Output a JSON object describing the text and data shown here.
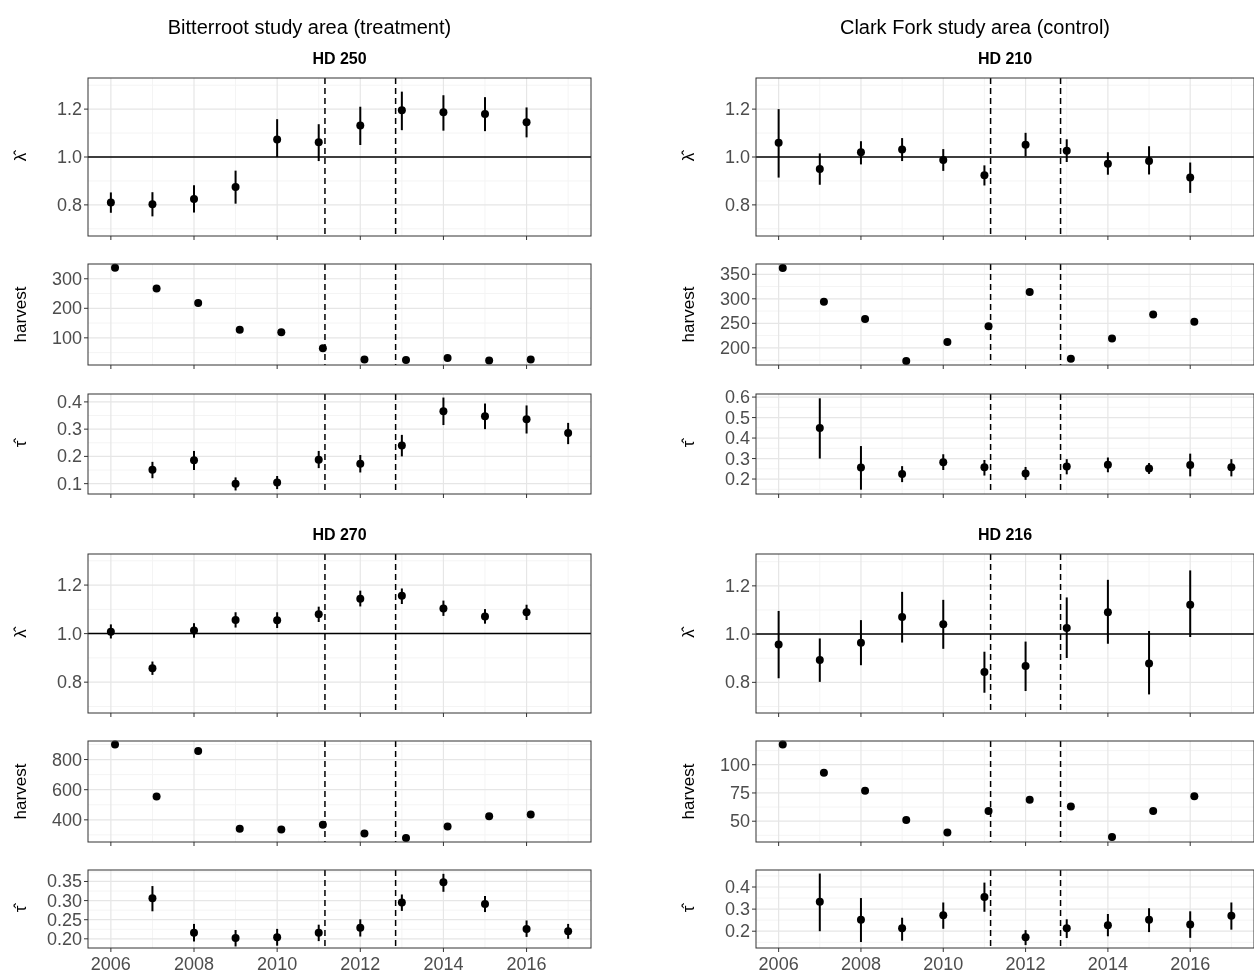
{
  "chart_data": [
    {
      "type": "scatter",
      "title": "Bitterroot study area (treatment)",
      "subtitle": "HD 250",
      "ylabel": "λ̂",
      "color": "#000000",
      "marker": "circle",
      "grid": true,
      "tick_labels": "y",
      "x": [
        2006,
        2007,
        2008,
        2009,
        2010,
        2011,
        2012,
        2013,
        2014,
        2015,
        2016
      ],
      "values": [
        0.81,
        0.803,
        0.825,
        0.875,
        1.073,
        1.062,
        1.132,
        1.195,
        1.187,
        1.18,
        1.145
      ],
      "errors": [
        [
          0.767,
          0.852
        ],
        [
          0.752,
          0.853
        ],
        [
          0.768,
          0.882
        ],
        [
          0.805,
          0.943
        ],
        [
          1.0,
          1.158
        ],
        [
          0.983,
          1.137
        ],
        [
          1.05,
          1.21
        ],
        [
          1.112,
          1.273
        ],
        [
          1.11,
          1.258
        ],
        [
          1.108,
          1.25
        ],
        [
          1.082,
          1.207
        ]
      ],
      "xlim": [
        2005.45,
        2017.55
      ],
      "xticks": [
        2006,
        2008,
        2010,
        2012,
        2014,
        2016
      ],
      "ylim": [
        0.67,
        1.33
      ],
      "yticks": [
        0.8,
        {
          "value": 1,
          "label": "1.0"
        },
        1.2
      ],
      "ref_lines": [
        {
          "axis": "y",
          "value": 1,
          "line_style": "solid"
        },
        {
          "axis": "x",
          "value": 2011.15,
          "line_style": "dashed"
        },
        {
          "axis": "x",
          "value": 2012.85,
          "line_style": "dashed"
        }
      ]
    },
    {
      "type": "scatter",
      "title": "Clark Fork study area (control)",
      "subtitle": "HD 210",
      "ylabel": "λ̂",
      "color": "#000000",
      "marker": "circle",
      "grid": true,
      "tick_labels": "y",
      "x": [
        2006,
        2007,
        2008,
        2009,
        2010,
        2011,
        2012,
        2013,
        2014,
        2015,
        2016
      ],
      "values": [
        1.06,
        0.95,
        1.02,
        1.031,
        0.987,
        0.924,
        1.051,
        1.026,
        0.972,
        0.983,
        0.914
      ],
      "errors": [
        [
          0.914,
          1.2
        ],
        [
          0.884,
          1.015
        ],
        [
          0.969,
          1.066
        ],
        [
          0.983,
          1.079
        ],
        [
          0.942,
          1.033
        ],
        [
          0.881,
          0.965
        ],
        [
          1.003,
          1.101
        ],
        [
          0.979,
          1.074
        ],
        [
          0.926,
          1.02
        ],
        [
          0.927,
          1.045
        ],
        [
          0.85,
          0.977
        ]
      ],
      "xlim": [
        2005.45,
        2017.55
      ],
      "xticks": [
        2006,
        2008,
        2010,
        2012,
        2014,
        2016
      ],
      "ylim": [
        0.67,
        1.33
      ],
      "yticks": [
        0.8,
        {
          "value": 1,
          "label": "1.0"
        },
        1.2
      ],
      "ref_lines": [
        {
          "axis": "y",
          "value": 1,
          "line_style": "solid"
        },
        {
          "axis": "x",
          "value": 2011.15,
          "line_style": "dashed"
        },
        {
          "axis": "x",
          "value": 2012.85,
          "line_style": "dashed"
        }
      ]
    },
    {
      "type": "scatter",
      "ylabel": "harvest",
      "color": "#000000",
      "marker": "circle",
      "grid": true,
      "tick_labels": "y",
      "x": [
        2006.1,
        2007.1,
        2008.1,
        2009.1,
        2010.1,
        2011.1,
        2012.1,
        2013.1,
        2014.1,
        2015.1,
        2016.1
      ],
      "values": [
        337,
        267,
        218,
        127,
        119,
        65,
        27,
        25,
        32,
        23,
        27
      ],
      "xlim": [
        2005.45,
        2017.55
      ],
      "xticks": [
        2006,
        2008,
        2010,
        2012,
        2014,
        2016
      ],
      "ylim": [
        8,
        350
      ],
      "yticks": [
        100,
        200,
        300
      ],
      "ref_lines": [
        {
          "axis": "x",
          "value": 2011.15,
          "line_style": "dashed"
        },
        {
          "axis": "x",
          "value": 2012.85,
          "line_style": "dashed"
        }
      ]
    },
    {
      "type": "scatter",
      "ylabel": "harvest",
      "color": "#000000",
      "marker": "circle",
      "grid": true,
      "tick_labels": "y",
      "x": [
        2006.1,
        2007.1,
        2008.1,
        2009.1,
        2010.1,
        2011.1,
        2012.1,
        2013.1,
        2014.1,
        2015.1,
        2016.1
      ],
      "values": [
        363,
        294,
        259,
        173,
        212,
        244,
        314,
        178,
        219,
        268,
        253
      ],
      "xlim": [
        2005.45,
        2017.55
      ],
      "xticks": [
        2006,
        2008,
        2010,
        2012,
        2014,
        2016
      ],
      "ylim": [
        165,
        371
      ],
      "yticks": [
        200,
        250,
        300,
        350
      ],
      "ref_lines": [
        {
          "axis": "x",
          "value": 2011.15,
          "line_style": "dashed"
        },
        {
          "axis": "x",
          "value": 2012.85,
          "line_style": "dashed"
        }
      ]
    },
    {
      "type": "scatter",
      "ylabel": "τ̂",
      "color": "#000000",
      "marker": "circle",
      "grid": true,
      "tick_labels": "y",
      "x": [
        2007,
        2008,
        2009,
        2010,
        2011,
        2012,
        2013,
        2014,
        2015,
        2016,
        2017
      ],
      "values": [
        0.151,
        0.186,
        0.1,
        0.104,
        0.188,
        0.173,
        0.24,
        0.366,
        0.347,
        0.336,
        0.286
      ],
      "errors": [
        [
          0.12,
          0.18
        ],
        [
          0.15,
          0.22
        ],
        [
          0.075,
          0.123
        ],
        [
          0.08,
          0.128
        ],
        [
          0.157,
          0.22
        ],
        [
          0.141,
          0.205
        ],
        [
          0.2,
          0.279
        ],
        [
          0.315,
          0.416
        ],
        [
          0.3,
          0.394
        ],
        [
          0.284,
          0.387
        ],
        [
          0.245,
          0.323
        ]
      ],
      "xlim": [
        2005.45,
        2017.55
      ],
      "xticks": [
        2006,
        2008,
        2010,
        2012,
        2014,
        2016
      ],
      "ylim": [
        0.062,
        0.429
      ],
      "yticks": [
        0.1,
        0.2,
        0.3,
        0.4
      ],
      "ref_lines": [
        {
          "axis": "x",
          "value": 2011.15,
          "line_style": "dashed"
        },
        {
          "axis": "x",
          "value": 2012.85,
          "line_style": "dashed"
        }
      ]
    },
    {
      "type": "scatter",
      "ylabel": "τ̂",
      "color": "#000000",
      "marker": "circle",
      "grid": true,
      "tick_labels": "y",
      "x": [
        2007,
        2008,
        2009,
        2010,
        2011,
        2012,
        2013,
        2014,
        2015,
        2016,
        2017
      ],
      "values": [
        0.449,
        0.256,
        0.225,
        0.282,
        0.257,
        0.227,
        0.261,
        0.27,
        0.251,
        0.268,
        0.257
      ],
      "errors": [
        [
          0.3,
          0.594
        ],
        [
          0.148,
          0.361
        ],
        [
          0.185,
          0.263
        ],
        [
          0.244,
          0.321
        ],
        [
          0.217,
          0.293
        ],
        [
          0.196,
          0.259
        ],
        [
          0.223,
          0.297
        ],
        [
          0.233,
          0.305
        ],
        [
          0.225,
          0.278
        ],
        [
          0.213,
          0.324
        ],
        [
          0.213,
          0.297
        ]
      ],
      "xlim": [
        2005.45,
        2017.55
      ],
      "xticks": [
        2006,
        2008,
        2010,
        2012,
        2014,
        2016
      ],
      "ylim": [
        0.127,
        0.615
      ],
      "yticks": [
        0.2,
        0.3,
        0.4,
        0.5,
        0.6
      ],
      "ref_lines": [
        {
          "axis": "x",
          "value": 2011.15,
          "line_style": "dashed"
        },
        {
          "axis": "x",
          "value": 2012.85,
          "line_style": "dashed"
        }
      ]
    },
    {
      "type": "scatter",
      "title": "HD 270",
      "ylabel": "λ̂",
      "color": "#000000",
      "marker": "circle",
      "grid": true,
      "tick_labels": "y",
      "x": [
        2006,
        2007,
        2008,
        2009,
        2010,
        2011,
        2012,
        2013,
        2014,
        2015,
        2016
      ],
      "values": [
        1.008,
        0.857,
        1.013,
        1.056,
        1.055,
        1.08,
        1.144,
        1.156,
        1.104,
        1.071,
        1.088
      ],
      "errors": [
        [
          0.98,
          1.038
        ],
        [
          0.83,
          0.885
        ],
        [
          0.983,
          1.043
        ],
        [
          1.025,
          1.088
        ],
        [
          1.023,
          1.088
        ],
        [
          1.048,
          1.111
        ],
        [
          1.112,
          1.177
        ],
        [
          1.122,
          1.186
        ],
        [
          1.073,
          1.136
        ],
        [
          1.041,
          1.101
        ],
        [
          1.056,
          1.119
        ]
      ],
      "xlim": [
        2005.45,
        2017.55
      ],
      "xticks": [
        2006,
        2008,
        2010,
        2012,
        2014,
        2016
      ],
      "ylim": [
        0.673,
        1.328
      ],
      "yticks": [
        0.8,
        {
          "value": 1,
          "label": "1.0"
        },
        1.2
      ],
      "ref_lines": [
        {
          "axis": "y",
          "value": 1,
          "line_style": "solid"
        },
        {
          "axis": "x",
          "value": 2011.15,
          "line_style": "dashed"
        },
        {
          "axis": "x",
          "value": 2012.85,
          "line_style": "dashed"
        }
      ]
    },
    {
      "type": "scatter",
      "title": "HD 216",
      "ylabel": "λ̂",
      "color": "#000000",
      "marker": "circle",
      "grid": true,
      "tick_labels": "y",
      "x": [
        2006,
        2007,
        2008,
        2009,
        2010,
        2011,
        2012,
        2013,
        2014,
        2015,
        2016
      ],
      "values": [
        0.957,
        0.893,
        0.964,
        1.071,
        1.041,
        0.843,
        0.868,
        1.025,
        1.091,
        0.878,
        1.122
      ],
      "errors": [
        [
          0.817,
          1.096
        ],
        [
          0.802,
          0.982
        ],
        [
          0.871,
          1.058
        ],
        [
          0.965,
          1.175
        ],
        [
          0.939,
          1.142
        ],
        [
          0.757,
          0.927
        ],
        [
          0.764,
          0.969
        ],
        [
          0.901,
          1.152
        ],
        [
          0.96,
          1.225
        ],
        [
          0.75,
          1.013
        ],
        [
          0.988,
          1.264
        ]
      ],
      "xlim": [
        2005.45,
        2017.55
      ],
      "xticks": [
        2006,
        2008,
        2010,
        2012,
        2014,
        2016
      ],
      "ylim": [
        0.673,
        1.332
      ],
      "yticks": [
        0.8,
        {
          "value": 1,
          "label": "1.0"
        },
        1.2
      ],
      "ref_lines": [
        {
          "axis": "y",
          "value": 1,
          "line_style": "solid"
        },
        {
          "axis": "x",
          "value": 2011.15,
          "line_style": "dashed"
        },
        {
          "axis": "x",
          "value": 2012.85,
          "line_style": "dashed"
        }
      ]
    },
    {
      "type": "scatter",
      "ylabel": "harvest",
      "color": "#000000",
      "marker": "circle",
      "grid": true,
      "tick_labels": "y",
      "x": [
        2006.1,
        2007.1,
        2008.1,
        2009.1,
        2010.1,
        2011.1,
        2012.1,
        2013.1,
        2014.1,
        2015.1,
        2016.1
      ],
      "values": [
        899,
        555,
        856,
        341,
        336,
        368,
        309,
        280,
        355,
        424,
        435
      ],
      "xlim": [
        2005.45,
        2017.55
      ],
      "xticks": [
        2006,
        2008,
        2010,
        2012,
        2014,
        2016
      ],
      "ylim": [
        253,
        923
      ],
      "yticks": [
        400,
        600,
        800
      ],
      "ref_lines": [
        {
          "axis": "x",
          "value": 2011.15,
          "line_style": "dashed"
        },
        {
          "axis": "x",
          "value": 2012.85,
          "line_style": "dashed"
        }
      ]
    },
    {
      "type": "scatter",
      "ylabel": "harvest",
      "color": "#000000",
      "marker": "circle",
      "grid": true,
      "tick_labels": "y",
      "x": [
        2006.1,
        2007.1,
        2008.1,
        2009.1,
        2010.1,
        2011.1,
        2012.1,
        2013.1,
        2014.1,
        2015.1,
        2016.1
      ],
      "values": [
        118,
        93,
        77,
        51,
        40,
        59,
        69,
        63,
        36,
        59,
        72
      ],
      "xlim": [
        2005.45,
        2017.55
      ],
      "xticks": [
        2006,
        2008,
        2010,
        2012,
        2014,
        2016
      ],
      "ylim": [
        31.6,
        121
      ],
      "yticks": [
        50,
        75,
        100
      ],
      "ref_lines": [
        {
          "axis": "x",
          "value": 2011.15,
          "line_style": "dashed"
        },
        {
          "axis": "x",
          "value": 2012.85,
          "line_style": "dashed"
        }
      ]
    },
    {
      "type": "scatter",
      "ylabel": "τ̂",
      "color": "#000000",
      "marker": "circle",
      "grid": true,
      "x": [
        2007,
        2008,
        2009,
        2010,
        2011,
        2012,
        2013,
        2014,
        2015,
        2016,
        2017
      ],
      "values": [
        0.306,
        0.216,
        0.202,
        0.204,
        0.216,
        0.229,
        0.295,
        0.348,
        0.291,
        0.226,
        0.22
      ],
      "errors": [
        [
          0.272,
          0.338
        ],
        [
          0.193,
          0.239
        ],
        [
          0.18,
          0.223
        ],
        [
          0.182,
          0.226
        ],
        [
          0.194,
          0.237
        ],
        [
          0.206,
          0.251
        ],
        [
          0.273,
          0.316
        ],
        [
          0.323,
          0.37
        ],
        [
          0.27,
          0.312
        ],
        [
          0.205,
          0.248
        ],
        [
          0.2,
          0.239
        ]
      ],
      "xlim": [
        2005.45,
        2017.55
      ],
      "xticks": [
        2006,
        2008,
        2010,
        2012,
        2014,
        2016
      ],
      "ylim": [
        0.176,
        0.38
      ],
      "yticks": [
        {
          "value": 0.2,
          "label": "0.20"
        },
        0.25,
        {
          "value": 0.3,
          "label": "0.30"
        },
        0.35
      ],
      "ref_lines": [
        {
          "axis": "x",
          "value": 2011.15,
          "line_style": "dashed"
        },
        {
          "axis": "x",
          "value": 2012.85,
          "line_style": "dashed"
        }
      ]
    },
    {
      "type": "scatter",
      "ylabel": "τ̂",
      "color": "#000000",
      "marker": "circle",
      "grid": true,
      "x": [
        2007,
        2008,
        2009,
        2010,
        2011,
        2012,
        2013,
        2014,
        2015,
        2016,
        2017
      ],
      "values": [
        0.333,
        0.252,
        0.213,
        0.272,
        0.355,
        0.173,
        0.213,
        0.227,
        0.252,
        0.23,
        0.27
      ],
      "errors": [
        [
          0.2,
          0.461
        ],
        [
          0.151,
          0.35
        ],
        [
          0.157,
          0.261
        ],
        [
          0.211,
          0.33
        ],
        [
          0.288,
          0.42
        ],
        [
          0.137,
          0.205
        ],
        [
          0.169,
          0.254
        ],
        [
          0.177,
          0.278
        ],
        [
          0.196,
          0.304
        ],
        [
          0.17,
          0.29
        ],
        [
          0.207,
          0.33
        ]
      ],
      "xlim": [
        2005.45,
        2017.55
      ],
      "xticks": [
        2006,
        2008,
        2010,
        2012,
        2014,
        2016
      ],
      "ylim": [
        0.124,
        0.477
      ],
      "yticks": [
        0.2,
        0.3,
        0.4
      ],
      "ref_lines": [
        {
          "axis": "x",
          "value": 2011.15,
          "line_style": "dashed"
        },
        {
          "axis": "x",
          "value": 2012.85,
          "line_style": "dashed"
        }
      ]
    }
  ]
}
